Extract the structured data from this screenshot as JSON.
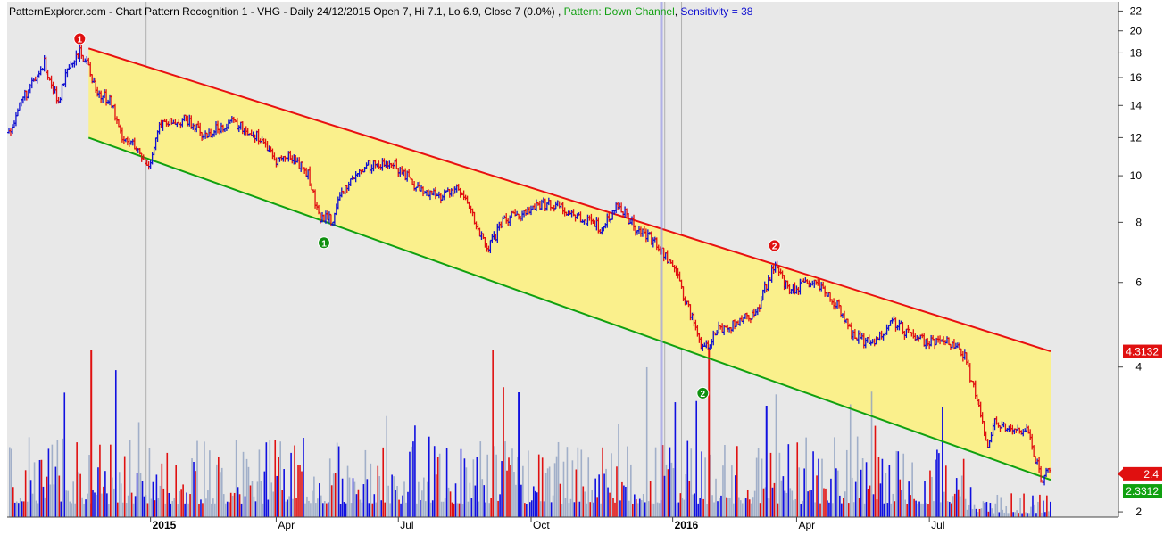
{
  "header": {
    "source": "PatternExplorer.com",
    "sep1": " - Chart Pattern Recognition 1  - ",
    "ohlc": "VHG - Daily 24/12/2015 Open 7, Hi 7.1, Lo 6.9, Close 7 (0.0%) , ",
    "pattern": "Pattern: Down Channel",
    "sep2": ", ",
    "sensitivity": "Sensitivity = 38"
  },
  "colors": {
    "background": "#e8e8e8",
    "channel_fill": "#faf08c",
    "resistance_line": "#e81010",
    "support_line": "#10a010",
    "up_bar": "#1010d0",
    "down_bar": "#e01010",
    "volume_blue": "#1010e0",
    "volume_red": "#e01010",
    "volume_grey": "#8fa0c0",
    "last_price_tag": "#e01010",
    "support_tag": "#10a010",
    "resistance_tag": "#e01010",
    "cursor_line": "#9b9be8"
  },
  "axis": {
    "y_scale": "log",
    "y_ticks": [
      "22",
      "20",
      "18",
      "16",
      "14",
      "12",
      "10",
      "8",
      "6",
      "4",
      "2"
    ],
    "x_ticks": [
      {
        "label": "2015",
        "bold": true
      },
      {
        "label": "Apr",
        "bold": false
      },
      {
        "label": "Jul",
        "bold": false
      },
      {
        "label": "Oct",
        "bold": false
      },
      {
        "label": "2016",
        "bold": true
      },
      {
        "label": "Apr",
        "bold": false
      },
      {
        "label": "Jul",
        "bold": false
      }
    ]
  },
  "tags": {
    "resistance": "4.3132",
    "last_price": "2.4",
    "support": "2.3312"
  },
  "markers": [
    {
      "label": "1",
      "type": "resistance",
      "day": 80,
      "price": 18.3
    },
    {
      "label": "1",
      "type": "support",
      "day": 356,
      "price": 7.7
    },
    {
      "label": "2",
      "type": "support",
      "day": 784,
      "price": 3.75
    },
    {
      "label": "2",
      "type": "resistance",
      "day": 865,
      "price": 6.8
    }
  ],
  "chart_data": {
    "type": "ohlc",
    "symbol": "VHG",
    "pattern": "Down Channel",
    "y_scale": "log",
    "ylim": [
      1.95,
      23
    ],
    "price_path": [
      {
        "day": 0,
        "price": 12.3
      },
      {
        "day": 15,
        "price": 14.5
      },
      {
        "day": 30,
        "price": 15.8
      },
      {
        "day": 40,
        "price": 17.2
      },
      {
        "day": 48,
        "price": 15.6
      },
      {
        "day": 55,
        "price": 14.1
      },
      {
        "day": 65,
        "price": 16.2
      },
      {
        "day": 80,
        "price": 18.0
      },
      {
        "day": 90,
        "price": 17.0
      },
      {
        "day": 100,
        "price": 14.8
      },
      {
        "day": 115,
        "price": 14.4
      },
      {
        "day": 125,
        "price": 12.3
      },
      {
        "day": 140,
        "price": 11.6
      },
      {
        "day": 157,
        "price": 10.4
      },
      {
        "day": 170,
        "price": 12.7
      },
      {
        "day": 200,
        "price": 13.1
      },
      {
        "day": 220,
        "price": 12.1
      },
      {
        "day": 250,
        "price": 13.0
      },
      {
        "day": 285,
        "price": 12.0
      },
      {
        "day": 300,
        "price": 10.8
      },
      {
        "day": 320,
        "price": 11.0
      },
      {
        "day": 338,
        "price": 10.1
      },
      {
        "day": 350,
        "price": 8.2
      },
      {
        "day": 365,
        "price": 8.1
      },
      {
        "day": 380,
        "price": 9.5
      },
      {
        "day": 405,
        "price": 10.5
      },
      {
        "day": 435,
        "price": 10.6
      },
      {
        "day": 460,
        "price": 9.5
      },
      {
        "day": 485,
        "price": 9.0
      },
      {
        "day": 505,
        "price": 9.5
      },
      {
        "day": 520,
        "price": 8.6
      },
      {
        "day": 540,
        "price": 7.0
      },
      {
        "day": 560,
        "price": 8.1
      },
      {
        "day": 610,
        "price": 8.8
      },
      {
        "day": 640,
        "price": 8.3
      },
      {
        "day": 668,
        "price": 7.8
      },
      {
        "day": 690,
        "price": 8.7
      },
      {
        "day": 705,
        "price": 7.9
      },
      {
        "day": 730,
        "price": 7.3
      },
      {
        "day": 750,
        "price": 6.5
      },
      {
        "day": 770,
        "price": 5.2
      },
      {
        "day": 785,
        "price": 4.3
      },
      {
        "day": 800,
        "price": 4.8
      },
      {
        "day": 820,
        "price": 4.9
      },
      {
        "day": 845,
        "price": 5.2
      },
      {
        "day": 865,
        "price": 6.6
      },
      {
        "day": 880,
        "price": 5.8
      },
      {
        "day": 910,
        "price": 6.0
      },
      {
        "day": 935,
        "price": 5.4
      },
      {
        "day": 955,
        "price": 4.6
      },
      {
        "day": 975,
        "price": 4.5
      },
      {
        "day": 1000,
        "price": 5.0
      },
      {
        "day": 1020,
        "price": 4.6
      },
      {
        "day": 1045,
        "price": 4.5
      },
      {
        "day": 1065,
        "price": 4.5
      },
      {
        "day": 1080,
        "price": 4.2
      },
      {
        "day": 1098,
        "price": 3.2
      },
      {
        "day": 1105,
        "price": 2.7
      },
      {
        "day": 1115,
        "price": 3.1
      },
      {
        "day": 1130,
        "price": 2.95
      },
      {
        "day": 1150,
        "price": 2.95
      },
      {
        "day": 1162,
        "price": 2.5
      },
      {
        "day": 1168,
        "price": 2.25
      },
      {
        "day": 1172,
        "price": 2.4
      },
      {
        "day": 1177,
        "price": 2.4
      }
    ],
    "resistance_line": {
      "start_day": 90,
      "start_price": 18.4,
      "end_day": 1177,
      "end_price": 4.3132
    },
    "support_line": {
      "start_day": 90,
      "start_price": 12.0,
      "end_day": 1177,
      "end_price": 2.3312
    },
    "last_close": 2.4
  }
}
